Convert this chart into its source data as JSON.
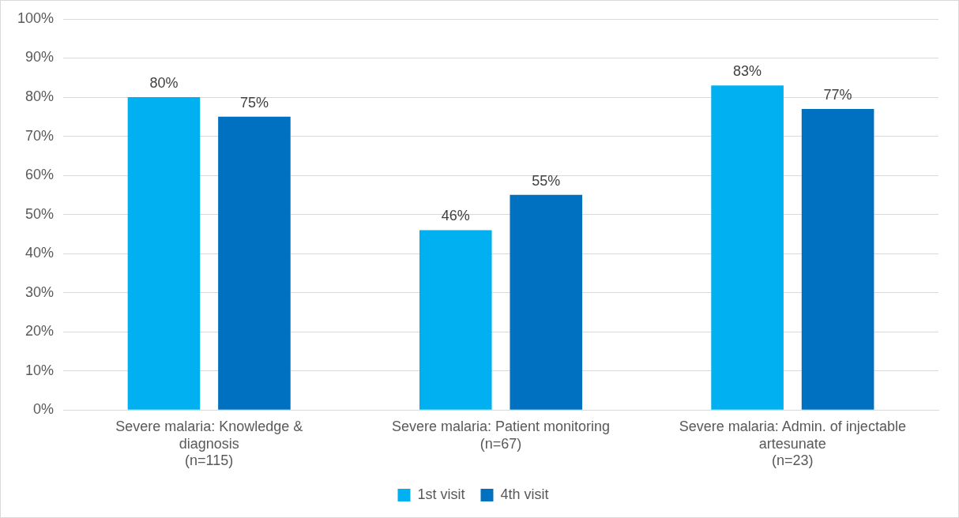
{
  "chart_data": {
    "type": "bar",
    "categories": [
      "Severe malaria: Knowledge &\ndiagnosis\n(n=115)",
      "Severe malaria: Patient monitoring\n(n=67)",
      "Severe malaria: Admin. of injectable\nartesunate\n(n=23)"
    ],
    "series": [
      {
        "name": "1st visit",
        "color": "#00b0f0",
        "values": [
          80,
          46,
          83
        ],
        "value_labels": [
          "80%",
          "46%",
          "83%"
        ]
      },
      {
        "name": "4th visit",
        "color": "#0070c0",
        "values": [
          75,
          55,
          77
        ],
        "value_labels": [
          "75%",
          "55%",
          "77%"
        ]
      }
    ],
    "ylim": [
      0,
      100
    ],
    "yticks": [
      {
        "value": 0,
        "label": "0%"
      },
      {
        "value": 10,
        "label": "10%"
      },
      {
        "value": 20,
        "label": "20%"
      },
      {
        "value": 30,
        "label": "30%"
      },
      {
        "value": 40,
        "label": "40%"
      },
      {
        "value": 50,
        "label": "50%"
      },
      {
        "value": 60,
        "label": "60%"
      },
      {
        "value": 70,
        "label": "70%"
      },
      {
        "value": 80,
        "label": "80%"
      },
      {
        "value": 90,
        "label": "90%"
      },
      {
        "value": 100,
        "label": "100%"
      }
    ],
    "grid": "y",
    "legend": "bottom"
  }
}
